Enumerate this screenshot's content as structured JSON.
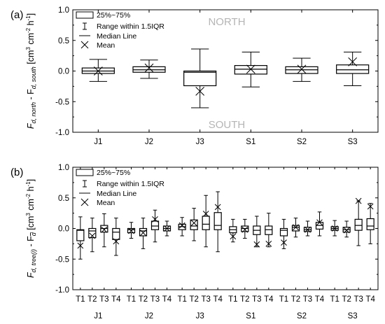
{
  "chart_data": [
    {
      "type": "box",
      "panel_label": "(a)",
      "ylabel_main": "F",
      "ylabel_sub1": "d, north",
      "ylabel_mid": " - F",
      "ylabel_sub2": "d, south",
      "ylabel_units": " [cm",
      "ylabel_sup1": "3",
      "ylabel_units2": " cm",
      "ylabel_sup2": "-2",
      "ylabel_units3": " h",
      "ylabel_sup3": "-1",
      "ylabel_close": "]",
      "ylim": [
        -1.0,
        1.0
      ],
      "yticks": [
        "-1.0",
        "-0.5",
        "0.0",
        "0.5",
        "1.0"
      ],
      "top_annotation": "NORTH",
      "bottom_annotation": "SOUTH",
      "legend": [
        "25%~75%",
        "Range within 1.5IQR",
        "Median Line",
        "Mean"
      ],
      "categories": [
        "J1",
        "J2",
        "J3",
        "S1",
        "S2",
        "S3"
      ],
      "boxes": [
        {
          "whisker_low": -0.17,
          "q1": -0.04,
          "median": 0.0,
          "q3": 0.05,
          "whisker_high": 0.19,
          "mean": 0.0
        },
        {
          "whisker_low": -0.12,
          "q1": -0.02,
          "median": 0.02,
          "q3": 0.07,
          "whisker_high": 0.18,
          "mean": 0.05
        },
        {
          "whisker_low": -0.6,
          "q1": -0.24,
          "median": -0.02,
          "q3": 0.0,
          "whisker_high": 0.36,
          "mean": -0.33
        },
        {
          "whisker_low": -0.26,
          "q1": -0.05,
          "median": 0.03,
          "q3": 0.09,
          "whisker_high": 0.31,
          "mean": 0.03
        },
        {
          "whisker_low": -0.17,
          "q1": -0.04,
          "median": 0.02,
          "q3": 0.07,
          "whisker_high": 0.21,
          "mean": 0.03
        },
        {
          "whisker_low": -0.24,
          "q1": -0.04,
          "median": 0.02,
          "q3": 0.1,
          "whisker_high": 0.31,
          "mean": 0.15
        }
      ]
    },
    {
      "type": "box",
      "panel_label": "(b)",
      "ylabel_main": "F",
      "ylabel_sub1": "d, tree(i)",
      "ylabel_mid": " - F",
      "ylabel_sub2": "d",
      "ylabel_units": " [cm",
      "ylabel_sup1": "3",
      "ylabel_units2": " cm",
      "ylabel_sup2": "-2",
      "ylabel_units3": " h",
      "ylabel_sup3": "-1",
      "ylabel_close": "]",
      "ylim": [
        -1.0,
        1.0
      ],
      "yticks": [
        "-1.0",
        "-0.5",
        "0.0",
        "0.5",
        "1.0"
      ],
      "legend": [
        "25%~75%",
        "Range within 1.5IQR",
        "Median Line",
        "Mean"
      ],
      "groups": [
        "J1",
        "J2",
        "J3",
        "S1",
        "S2",
        "S3"
      ],
      "trees": [
        "T1",
        "T2",
        "T3",
        "T4"
      ],
      "boxes": [
        [
          {
            "whisker_low": -0.5,
            "q1": -0.2,
            "median": -0.03,
            "q3": -0.02,
            "whisker_high": 0.19,
            "mean": -0.28
          },
          {
            "whisker_low": -0.38,
            "q1": -0.15,
            "median": -0.04,
            "q3": 0.0,
            "whisker_high": 0.17,
            "mean": -0.12
          },
          {
            "whisker_low": -0.3,
            "q1": -0.06,
            "median": 0.0,
            "q3": 0.05,
            "whisker_high": 0.24,
            "mean": -0.02
          },
          {
            "whisker_low": -0.44,
            "q1": -0.18,
            "median": -0.06,
            "q3": 0.0,
            "whisker_high": 0.17,
            "mean": -0.21
          }
        ],
        [
          {
            "whisker_low": -0.16,
            "q1": -0.07,
            "median": -0.02,
            "q3": 0.0,
            "whisker_high": 0.1,
            "mean": -0.04
          },
          {
            "whisker_low": -0.33,
            "q1": -0.12,
            "median": -0.04,
            "q3": 0.0,
            "whisker_high": 0.17,
            "mean": -0.07
          },
          {
            "whisker_low": -0.22,
            "q1": -0.02,
            "median": 0.04,
            "q3": 0.12,
            "whisker_high": 0.3,
            "mean": 0.15
          },
          {
            "whisker_low": -0.12,
            "q1": -0.04,
            "median": 0.0,
            "q3": 0.04,
            "whisker_high": 0.12,
            "mean": 0.0
          }
        ],
        [
          {
            "whisker_low": -0.12,
            "q1": -0.02,
            "median": 0.03,
            "q3": 0.07,
            "whisker_high": 0.18,
            "mean": 0.05
          },
          {
            "whisker_low": -0.2,
            "q1": -0.02,
            "median": 0.04,
            "q3": 0.14,
            "whisker_high": 0.33,
            "mean": 0.09
          },
          {
            "whisker_low": -0.3,
            "q1": -0.02,
            "median": 0.07,
            "q3": 0.2,
            "whisker_high": 0.54,
            "mean": 0.24
          },
          {
            "whisker_low": -0.38,
            "q1": -0.02,
            "median": 0.05,
            "q3": 0.26,
            "whisker_high": 0.6,
            "mean": 0.35
          }
        ],
        [
          {
            "whisker_low": -0.22,
            "q1": -0.07,
            "median": -0.02,
            "q3": 0.03,
            "whisker_high": 0.15,
            "mean": -0.13
          },
          {
            "whisker_low": -0.16,
            "q1": -0.05,
            "median": 0.0,
            "q3": 0.04,
            "whisker_high": 0.15,
            "mean": -0.02
          },
          {
            "whisker_low": -0.3,
            "q1": -0.1,
            "median": -0.03,
            "q3": 0.04,
            "whisker_high": 0.2,
            "mean": -0.26
          },
          {
            "whisker_low": -0.3,
            "q1": -0.1,
            "median": -0.02,
            "q3": 0.04,
            "whisker_high": 0.25,
            "mean": -0.25
          }
        ],
        [
          {
            "whisker_low": -0.33,
            "q1": -0.12,
            "median": -0.03,
            "q3": 0.0,
            "whisker_high": 0.15,
            "mean": -0.23
          },
          {
            "whisker_low": -0.14,
            "q1": -0.04,
            "median": 0.02,
            "q3": 0.05,
            "whisker_high": 0.17,
            "mean": 0.02
          },
          {
            "whisker_low": -0.12,
            "q1": -0.05,
            "median": -0.02,
            "q3": 0.02,
            "whisker_high": 0.12,
            "mean": -0.02
          },
          {
            "whisker_low": -0.12,
            "q1": -0.01,
            "median": 0.05,
            "q3": 0.1,
            "whisker_high": 0.27,
            "mean": 0.1
          }
        ],
        [
          {
            "whisker_low": -0.12,
            "q1": -0.03,
            "median": 0.0,
            "q3": 0.03,
            "whisker_high": 0.13,
            "mean": 0.0
          },
          {
            "whisker_low": -0.14,
            "q1": -0.06,
            "median": -0.02,
            "q3": 0.02,
            "whisker_high": 0.12,
            "mean": -0.03
          },
          {
            "whisker_low": -0.28,
            "q1": -0.03,
            "median": 0.05,
            "q3": 0.15,
            "whisker_high": 0.45,
            "mean": 0.45
          },
          {
            "whisker_low": -0.25,
            "q1": -0.02,
            "median": 0.04,
            "q3": 0.16,
            "whisker_high": 0.41,
            "mean": 0.36
          }
        ]
      ]
    }
  ]
}
